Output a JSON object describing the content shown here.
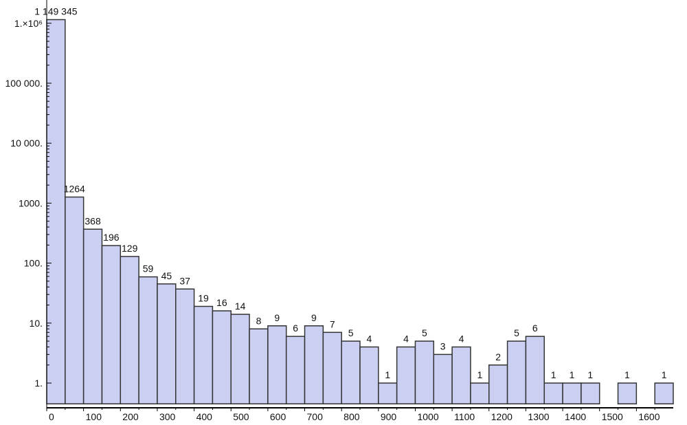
{
  "chart_data": {
    "type": "bar",
    "y_scale": "log",
    "bin_width": 50,
    "x": [
      0,
      50,
      100,
      150,
      200,
      250,
      300,
      350,
      400,
      450,
      500,
      550,
      600,
      650,
      700,
      750,
      800,
      850,
      900,
      950,
      1000,
      1050,
      1100,
      1150,
      1200,
      1250,
      1300,
      1350,
      1400,
      1450,
      1500,
      1550,
      1600,
      1650
    ],
    "values": [
      1149345,
      1264,
      368,
      196,
      129,
      59,
      45,
      37,
      19,
      16,
      14,
      8,
      9,
      6,
      9,
      7,
      5,
      4,
      1,
      4,
      5,
      3,
      4,
      1,
      2,
      5,
      6,
      1,
      1,
      1,
      0,
      1,
      0,
      1
    ],
    "value_labels": [
      "1 149 345",
      "1264",
      "368",
      "196",
      "129",
      "59",
      "45",
      "37",
      "19",
      "16",
      "14",
      "8",
      "9",
      "6",
      "9",
      "7",
      "5",
      "4",
      "1",
      "4",
      "5",
      "3",
      "4",
      "1",
      "2",
      "5",
      "6",
      "1",
      "1",
      "1",
      "",
      "1",
      "",
      "1"
    ],
    "y_ticks": [
      1,
      10,
      100,
      1000,
      10000,
      100000,
      1000000
    ],
    "y_tick_labels": [
      "1.",
      "10.",
      "100.",
      "1000.",
      "10 000.",
      "100 000.",
      "1.×10⁶"
    ],
    "x_ticks": [
      0,
      100,
      200,
      300,
      400,
      500,
      600,
      700,
      800,
      900,
      1000,
      1100,
      1200,
      1300,
      1400,
      1500,
      1600
    ],
    "x_tick_labels": [
      "0",
      "100",
      "200",
      "300",
      "400",
      "500",
      "600",
      "700",
      "800",
      "900",
      "1000",
      "1100",
      "1200",
      "1300",
      "1400",
      "1500",
      "1600"
    ],
    "xlim": [
      0,
      1700
    ],
    "ylim": [
      0.45,
      1149345
    ],
    "title": "",
    "xlabel": "",
    "ylabel": "",
    "grid": false,
    "bar_color": "#cbd0f3",
    "edge_color": "#333333"
  }
}
